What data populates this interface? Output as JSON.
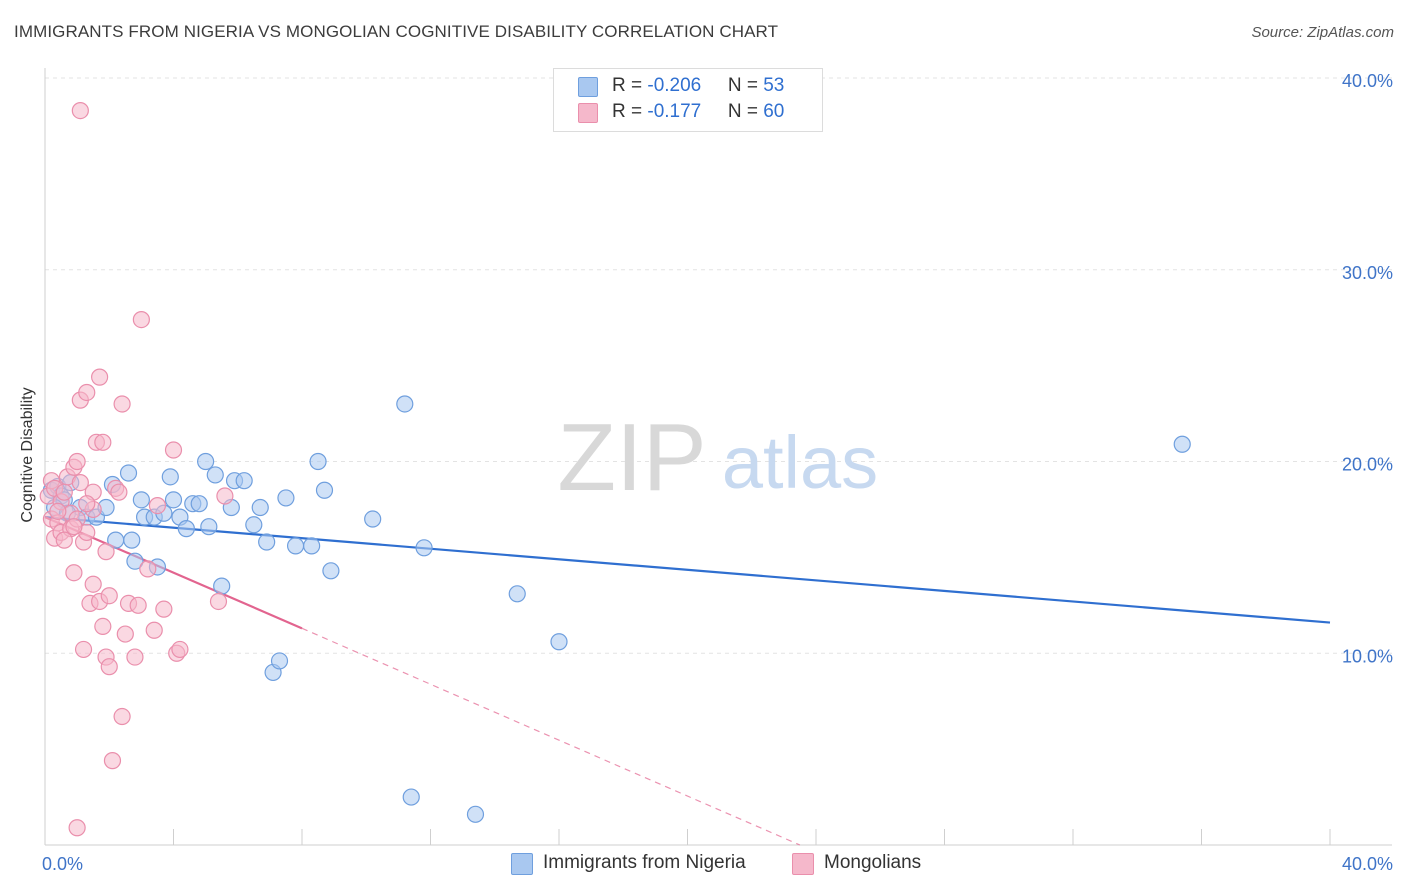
{
  "title": "IMMIGRANTS FROM NIGERIA VS MONGOLIAN COGNITIVE DISABILITY CORRELATION CHART",
  "source": "Source: ZipAtlas.com",
  "watermark": {
    "zip": "ZIP",
    "atlas": "atlas"
  },
  "colors": {
    "blue_fill": "#a9c8f0",
    "blue_stroke": "#6f9fde",
    "blue_line": "#2f6fd0",
    "pink_fill": "#f5b8cb",
    "pink_stroke": "#ea8fac",
    "pink_line": "#e2648f",
    "axis_text": "#3f74c8",
    "grid": "#e3e3e3"
  },
  "legend": {
    "rows": [
      {
        "r_label": "R = ",
        "r_value": "-0.206",
        "n_label": "N = ",
        "n_value": "53",
        "color": "#a9c8f0",
        "border": "#6f9fde"
      },
      {
        "r_label": "R = ",
        "r_value": "-0.177",
        "n_label": "N = ",
        "n_value": "60",
        "color": "#f5b8cb",
        "border": "#ea8fac"
      }
    ]
  },
  "bottom_legend": [
    {
      "label": "Immigrants from Nigeria",
      "color": "#a9c8f0",
      "border": "#6f9fde"
    },
    {
      "label": "Mongolians",
      "color": "#f5b8cb",
      "border": "#ea8fac"
    }
  ],
  "chart_data": {
    "type": "scatter",
    "title": "IMMIGRANTS FROM NIGERIA VS MONGOLIAN COGNITIVE DISABILITY CORRELATION CHART",
    "xlabel": "",
    "ylabel": "Cognitive Disability",
    "xlim": [
      0,
      40
    ],
    "ylim": [
      0,
      40
    ],
    "x_tick_labels": [
      "0.0%",
      "40.0%"
    ],
    "y_tick_labels": [
      "10.0%",
      "20.0%",
      "30.0%",
      "40.0%"
    ],
    "y_ticks": [
      10,
      20,
      30,
      40
    ],
    "x_minor_ticks": [
      4,
      8,
      12,
      16,
      20,
      24,
      28,
      32,
      36,
      40
    ],
    "grid": true,
    "legend_position": "top-center",
    "series": [
      {
        "name": "Immigrants from Nigeria",
        "color": "blue",
        "points": [
          [
            0.2,
            18.5
          ],
          [
            0.4,
            18.7
          ],
          [
            0.5,
            18.2
          ],
          [
            0.6,
            18.0
          ],
          [
            0.8,
            18.9
          ],
          [
            1.1,
            17.6
          ],
          [
            1.3,
            17.1
          ],
          [
            1.6,
            17.1
          ],
          [
            1.9,
            17.6
          ],
          [
            2.1,
            18.8
          ],
          [
            2.2,
            15.9
          ],
          [
            2.6,
            19.4
          ],
          [
            2.7,
            15.9
          ],
          [
            2.8,
            14.8
          ],
          [
            3.0,
            18.0
          ],
          [
            3.1,
            17.1
          ],
          [
            3.4,
            17.1
          ],
          [
            3.5,
            14.5
          ],
          [
            3.7,
            17.3
          ],
          [
            3.9,
            19.2
          ],
          [
            4.0,
            18.0
          ],
          [
            4.2,
            17.1
          ],
          [
            4.4,
            16.5
          ],
          [
            4.6,
            17.8
          ],
          [
            4.8,
            17.8
          ],
          [
            5.0,
            20.0
          ],
          [
            5.1,
            16.6
          ],
          [
            5.3,
            19.3
          ],
          [
            5.5,
            13.5
          ],
          [
            5.8,
            17.6
          ],
          [
            5.9,
            19.0
          ],
          [
            6.2,
            19.0
          ],
          [
            6.5,
            16.7
          ],
          [
            6.7,
            17.6
          ],
          [
            6.9,
            15.8
          ],
          [
            7.1,
            9.0
          ],
          [
            7.3,
            9.6
          ],
          [
            7.5,
            18.1
          ],
          [
            7.8,
            15.6
          ],
          [
            8.3,
            15.6
          ],
          [
            8.5,
            20.0
          ],
          [
            8.7,
            18.5
          ],
          [
            8.9,
            14.3
          ],
          [
            10.2,
            17.0
          ],
          [
            11.2,
            23.0
          ],
          [
            11.4,
            2.5
          ],
          [
            11.8,
            15.5
          ],
          [
            13.4,
            1.6
          ],
          [
            14.7,
            13.1
          ],
          [
            16.0,
            10.6
          ],
          [
            35.4,
            20.9
          ],
          [
            0.3,
            17.6
          ],
          [
            0.7,
            17.3
          ]
        ],
        "trend": {
          "x_start": 0,
          "y_start": 17.1,
          "x_end": 40,
          "y_end": 11.6
        }
      },
      {
        "name": "Mongolians",
        "color": "pink",
        "points": [
          [
            0.1,
            18.2
          ],
          [
            0.2,
            19.0
          ],
          [
            0.2,
            17.0
          ],
          [
            0.3,
            16.0
          ],
          [
            0.3,
            18.6
          ],
          [
            0.4,
            16.8
          ],
          [
            0.5,
            17.9
          ],
          [
            0.5,
            16.3
          ],
          [
            0.6,
            18.4
          ],
          [
            0.7,
            19.2
          ],
          [
            0.8,
            16.5
          ],
          [
            0.8,
            17.3
          ],
          [
            0.6,
            15.9
          ],
          [
            0.9,
            19.7
          ],
          [
            0.9,
            14.2
          ],
          [
            1.0,
            20.0
          ],
          [
            1.0,
            17.0
          ],
          [
            1.1,
            23.2
          ],
          [
            1.1,
            18.9
          ],
          [
            1.2,
            15.8
          ],
          [
            1.2,
            10.2
          ],
          [
            1.3,
            23.6
          ],
          [
            1.3,
            16.3
          ],
          [
            1.4,
            12.6
          ],
          [
            1.5,
            13.6
          ],
          [
            1.5,
            17.5
          ],
          [
            1.6,
            21.0
          ],
          [
            1.7,
            24.4
          ],
          [
            1.7,
            12.7
          ],
          [
            1.8,
            21.0
          ],
          [
            1.8,
            11.4
          ],
          [
            1.9,
            9.8
          ],
          [
            1.9,
            15.3
          ],
          [
            2.0,
            13.0
          ],
          [
            2.0,
            9.3
          ],
          [
            2.1,
            4.4
          ],
          [
            2.2,
            18.6
          ],
          [
            2.3,
            18.4
          ],
          [
            2.4,
            6.7
          ],
          [
            2.4,
            23.0
          ],
          [
            2.5,
            11.0
          ],
          [
            2.6,
            12.6
          ],
          [
            2.8,
            9.8
          ],
          [
            2.9,
            12.5
          ],
          [
            3.0,
            27.4
          ],
          [
            3.2,
            14.4
          ],
          [
            3.4,
            11.2
          ],
          [
            3.5,
            17.7
          ],
          [
            3.7,
            12.3
          ],
          [
            4.0,
            20.6
          ],
          [
            4.1,
            10.0
          ],
          [
            4.2,
            10.2
          ],
          [
            5.4,
            12.7
          ],
          [
            5.6,
            18.2
          ],
          [
            1.0,
            0.9
          ],
          [
            1.1,
            38.3
          ],
          [
            1.5,
            18.4
          ],
          [
            0.4,
            17.4
          ],
          [
            0.9,
            16.6
          ],
          [
            1.3,
            17.8
          ]
        ],
        "trend": {
          "x_start": 0,
          "y_start": 17.1,
          "x_end": 8,
          "y_end": 11.3
        },
        "trend_dashed": {
          "x_start": 8,
          "y_start": 11.3,
          "x_end": 23.5,
          "y_end": 0
        }
      }
    ]
  }
}
